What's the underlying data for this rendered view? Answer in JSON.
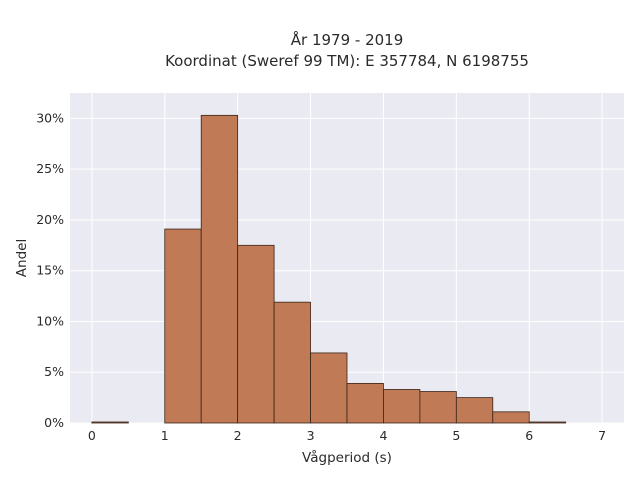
{
  "chart_data": {
    "type": "bar",
    "title_lines": [
      "År 1979 - 2019",
      "Koordinat (Sweref 99 TM): E 357784, N 6198755"
    ],
    "xlabel": "Vågperiod (s)",
    "ylabel": "Andel",
    "bin_width": 0.5,
    "bins": [
      {
        "x0": 0.0,
        "x1": 0.5,
        "value": 0.1
      },
      {
        "x0": 0.5,
        "x1": 1.0,
        "value": 0.0
      },
      {
        "x0": 1.0,
        "x1": 1.5,
        "value": 19.1
      },
      {
        "x0": 1.5,
        "x1": 2.0,
        "value": 30.3
      },
      {
        "x0": 2.0,
        "x1": 2.5,
        "value": 17.5
      },
      {
        "x0": 2.5,
        "x1": 3.0,
        "value": 11.9
      },
      {
        "x0": 3.0,
        "x1": 3.5,
        "value": 6.9
      },
      {
        "x0": 3.5,
        "x1": 4.0,
        "value": 3.9
      },
      {
        "x0": 4.0,
        "x1": 4.5,
        "value": 3.3
      },
      {
        "x0": 4.5,
        "x1": 5.0,
        "value": 3.1
      },
      {
        "x0": 5.0,
        "x1": 5.5,
        "value": 2.5
      },
      {
        "x0": 5.5,
        "x1": 6.0,
        "value": 1.1
      },
      {
        "x0": 6.0,
        "x1": 6.5,
        "value": 0.1
      },
      {
        "x0": 6.5,
        "x1": 7.0,
        "value": 0.0
      }
    ],
    "xlim": [
      -0.3,
      7.3
    ],
    "ylim": [
      0,
      32.5
    ],
    "xticks": [
      0,
      1,
      2,
      3,
      4,
      5,
      6,
      7
    ],
    "yticks": [
      0,
      5,
      10,
      15,
      20,
      25,
      30
    ],
    "ytick_suffix": "%",
    "grid": true,
    "bar_color": "#c07a55",
    "bar_edge_color": "#3a2418",
    "plot_bg_color": "#eaeaf2",
    "grid_color": "#ffffff"
  }
}
